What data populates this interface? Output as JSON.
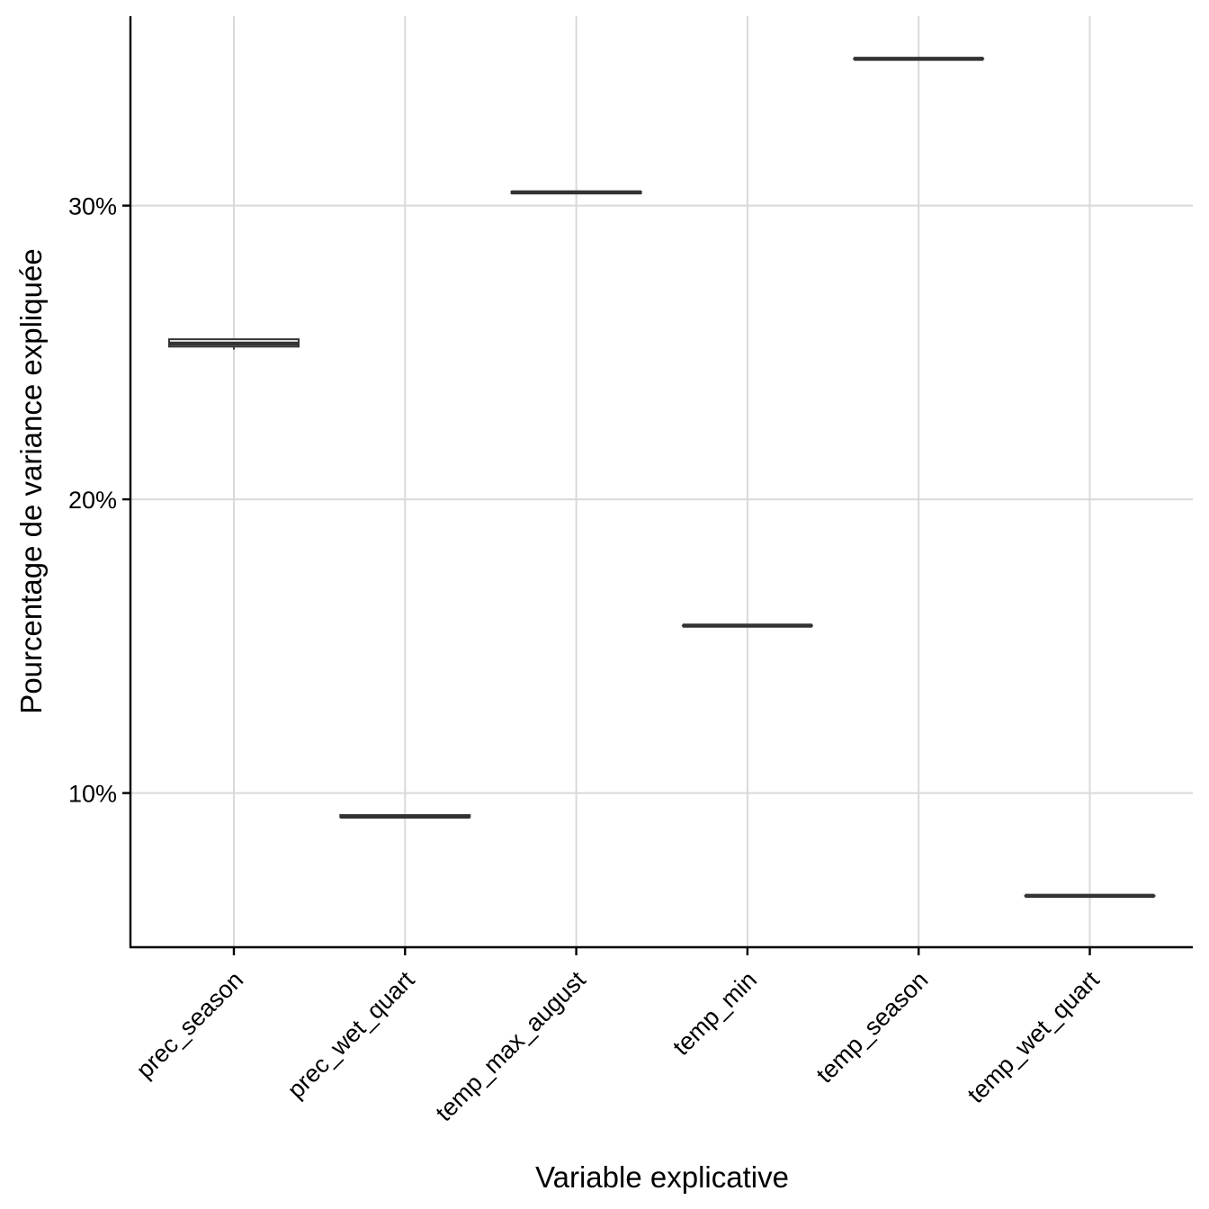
{
  "chart_data": {
    "type": "boxplot",
    "xlabel": "Variable explicative",
    "ylabel": "Pourcentage de variance expliquée",
    "categories": [
      "prec_season",
      "prec_wet_quart",
      "temp_max_august",
      "temp_min",
      "temp_season",
      "temp_wet_quart"
    ],
    "series": [
      {
        "values": [
          25.3,
          9.2,
          30.45,
          15.7,
          35.0,
          6.5
        ],
        "q1": [
          25.2,
          9.18,
          30.42,
          15.7,
          35.0,
          6.5
        ],
        "q3": [
          25.45,
          9.25,
          30.48,
          15.7,
          35.0,
          6.5
        ],
        "whisker_low": [
          25.1,
          9.16,
          30.42,
          15.7,
          35.0,
          6.5
        ],
        "whisker_high": [
          25.45,
          9.28,
          30.5,
          15.7,
          35.0,
          6.5
        ]
      }
    ],
    "yticks": [
      10,
      20,
      30
    ],
    "ytick_labels": [
      "10%",
      "20%",
      "30%"
    ],
    "ylim": [
      4.75,
      36.45
    ],
    "grid": true,
    "legend": "none",
    "colors": {
      "box_stroke": "#333333",
      "grid": "#d9d9d9",
      "axis": "#000000",
      "background": "#ffffff"
    }
  }
}
